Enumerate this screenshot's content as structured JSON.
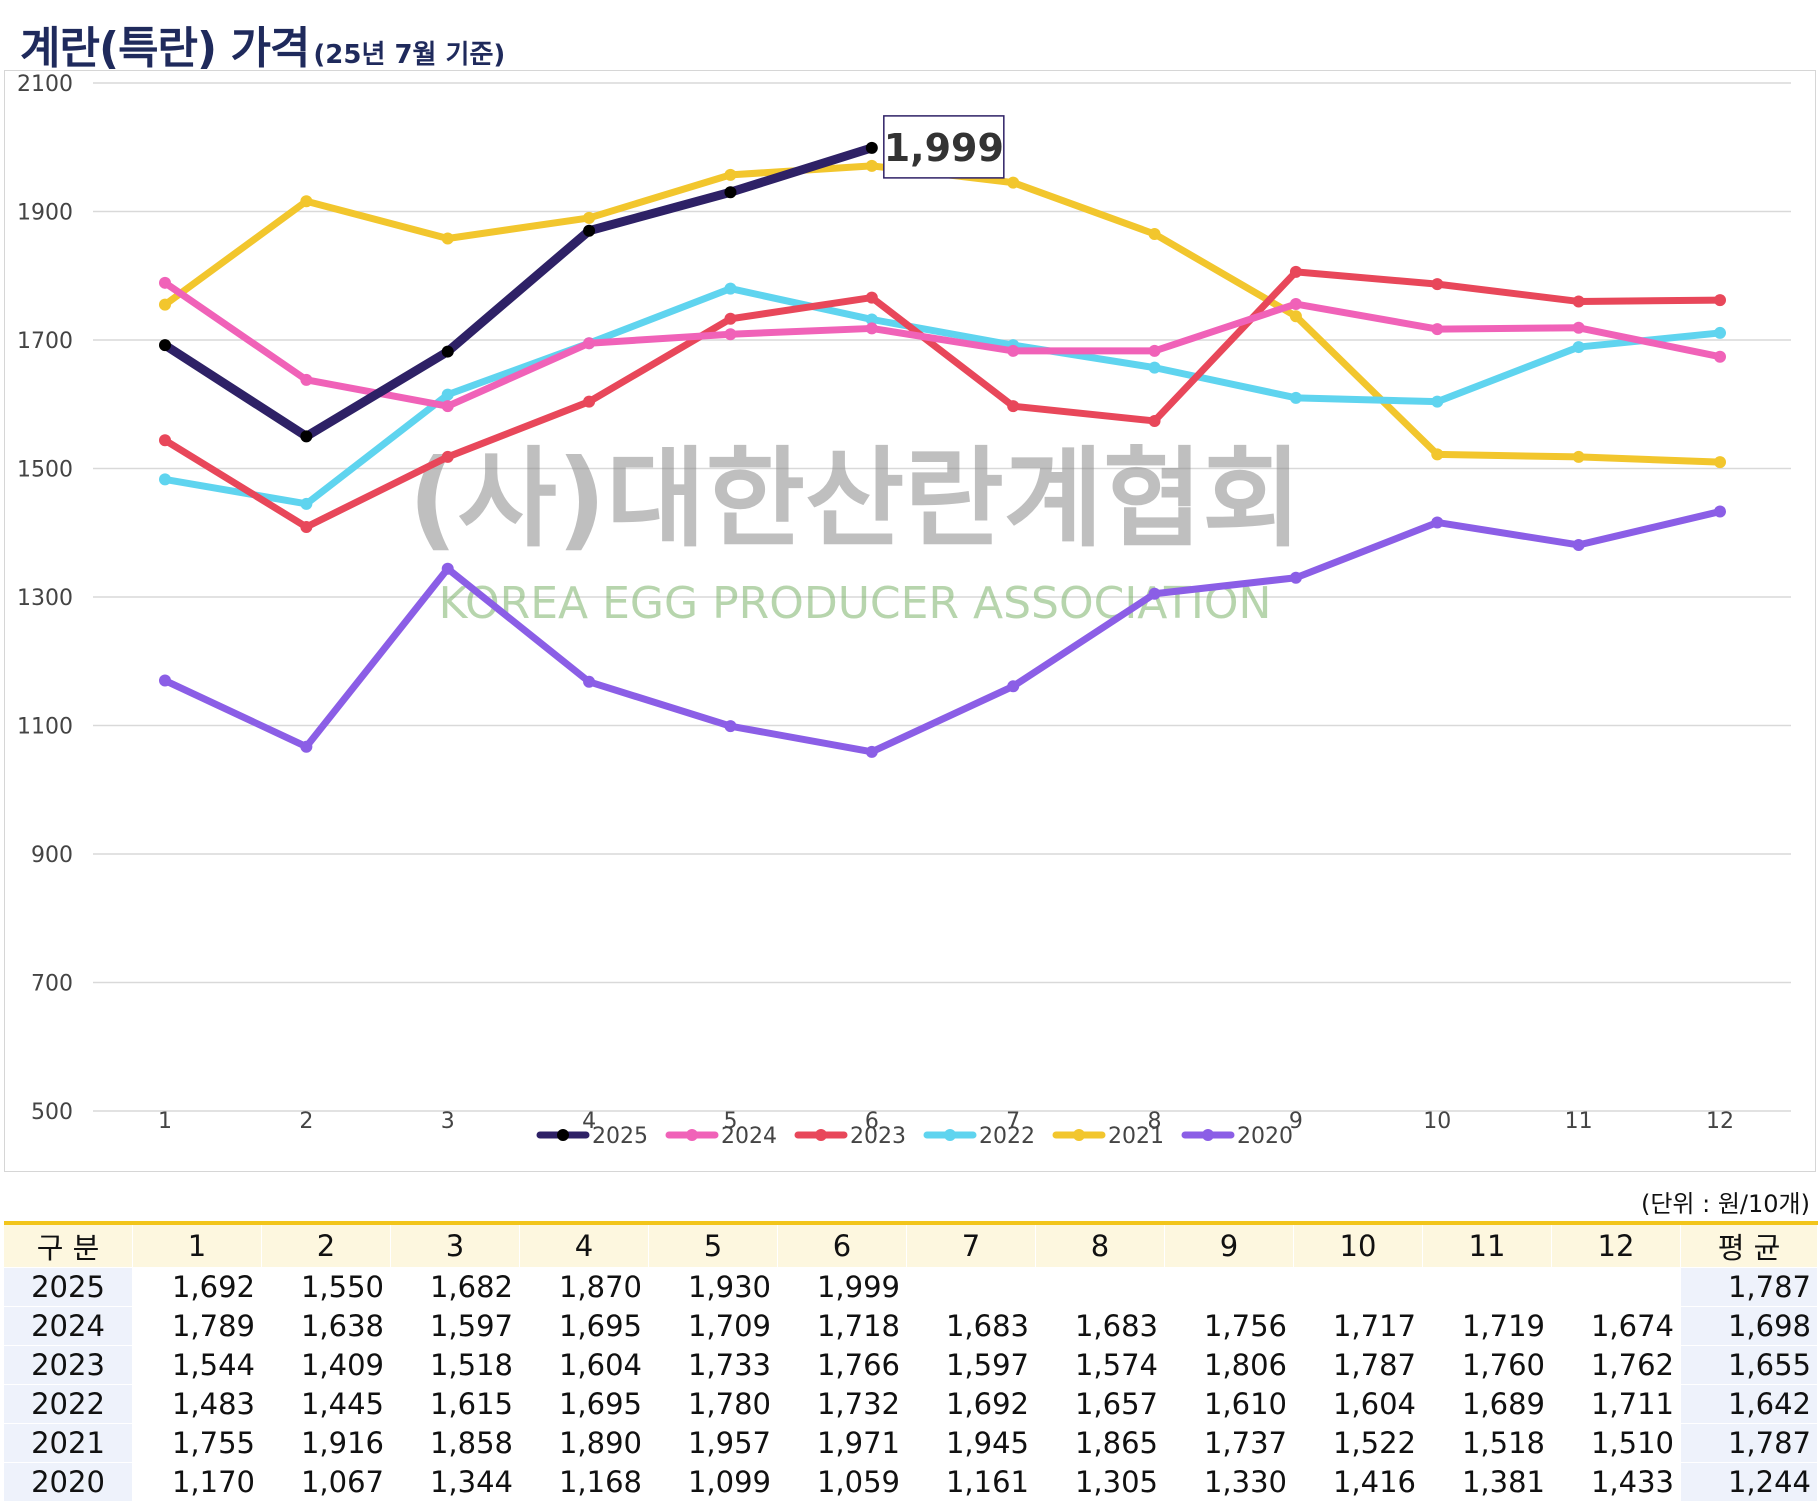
{
  "title": "계란(특란) 가격",
  "subtitle": "(25년 7월 기준)",
  "watermark": {
    "line1": "(사)대한산란계협회",
    "line2": "KOREA EGG PRODUCER ASSOCIATION"
  },
  "unit_note": "(단위 : 원/10개)",
  "chart_data": {
    "type": "line",
    "categories": [
      "1",
      "2",
      "3",
      "4",
      "5",
      "6",
      "7",
      "8",
      "9",
      "10",
      "11",
      "12"
    ],
    "ylim": [
      500,
      2100
    ],
    "yticks": [
      500,
      700,
      900,
      1100,
      1300,
      1500,
      1700,
      1900,
      2100
    ],
    "grid": true,
    "legend_position": "bottom",
    "series": [
      {
        "name": "2025",
        "color": "#2e2166",
        "values": [
          1692,
          1550,
          1682,
          1870,
          1930,
          1999,
          null,
          null,
          null,
          null,
          null,
          null
        ]
      },
      {
        "name": "2024",
        "color": "#f062b8",
        "values": [
          1789,
          1638,
          1597,
          1695,
          1709,
          1718,
          1683,
          1683,
          1756,
          1717,
          1719,
          1674
        ]
      },
      {
        "name": "2023",
        "color": "#e8475a",
        "values": [
          1544,
          1409,
          1518,
          1604,
          1733,
          1766,
          1597,
          1574,
          1806,
          1787,
          1760,
          1762
        ]
      },
      {
        "name": "2022",
        "color": "#5fd4ef",
        "values": [
          1483,
          1445,
          1615,
          1695,
          1780,
          1732,
          1692,
          1657,
          1610,
          1604,
          1689,
          1711
        ]
      },
      {
        "name": "2021",
        "color": "#f2c62d",
        "values": [
          1755,
          1916,
          1858,
          1890,
          1957,
          1971,
          1945,
          1865,
          1737,
          1522,
          1518,
          1510
        ]
      },
      {
        "name": "2020",
        "color": "#8b5ee6",
        "values": [
          1170,
          1067,
          1344,
          1168,
          1099,
          1059,
          1161,
          1305,
          1330,
          1416,
          1381,
          1433
        ]
      }
    ],
    "annotation": {
      "series": "2025",
      "category": "6",
      "text": "1,999"
    }
  },
  "table": {
    "header": [
      "구 분",
      "1",
      "2",
      "3",
      "4",
      "5",
      "6",
      "7",
      "8",
      "9",
      "10",
      "11",
      "12",
      "평 균"
    ],
    "rows": [
      [
        "2025",
        "1,692",
        "1,550",
        "1,682",
        "1,870",
        "1,930",
        "1,999",
        "",
        "",
        "",
        "",
        "",
        "",
        "1,787"
      ],
      [
        "2024",
        "1,789",
        "1,638",
        "1,597",
        "1,695",
        "1,709",
        "1,718",
        "1,683",
        "1,683",
        "1,756",
        "1,717",
        "1,719",
        "1,674",
        "1,698"
      ],
      [
        "2023",
        "1,544",
        "1,409",
        "1,518",
        "1,604",
        "1,733",
        "1,766",
        "1,597",
        "1,574",
        "1,806",
        "1,787",
        "1,760",
        "1,762",
        "1,655"
      ],
      [
        "2022",
        "1,483",
        "1,445",
        "1,615",
        "1,695",
        "1,780",
        "1,732",
        "1,692",
        "1,657",
        "1,610",
        "1,604",
        "1,689",
        "1,711",
        "1,642"
      ],
      [
        "2021",
        "1,755",
        "1,916",
        "1,858",
        "1,890",
        "1,957",
        "1,971",
        "1,945",
        "1,865",
        "1,737",
        "1,522",
        "1,518",
        "1,510",
        "1,787"
      ],
      [
        "2020",
        "1,170",
        "1,067",
        "1,344",
        "1,168",
        "1,099",
        "1,059",
        "1,161",
        "1,305",
        "1,330",
        "1,416",
        "1,381",
        "1,433",
        "1,244"
      ]
    ]
  }
}
